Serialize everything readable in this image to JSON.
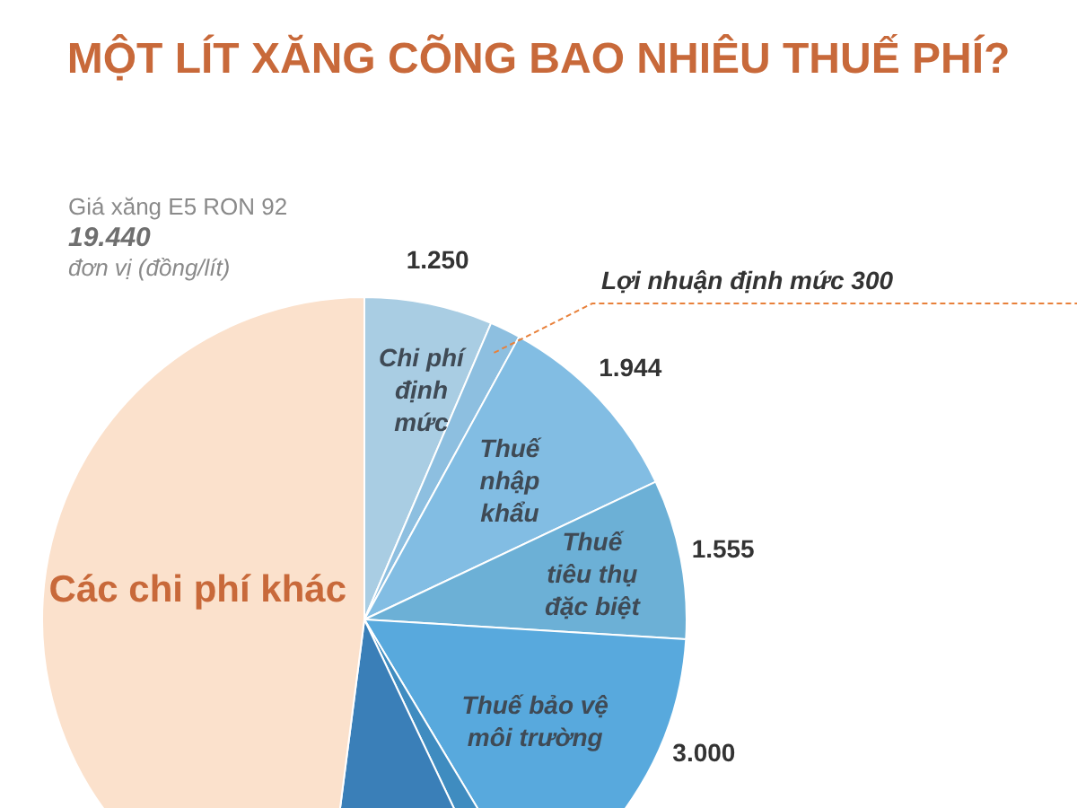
{
  "chart_data": {
    "type": "pie",
    "title": "MỘT LÍT XĂNG CÕNG BAO NHIÊU THUẾ PHÍ?",
    "annotations": [
      "Giá xăng E5 RON 92",
      "19.440",
      "đơn vị (đồng/lít)"
    ],
    "categories": [
      "Chi phí định mức",
      "Lợi nhuận định mức",
      "Thuế nhập khẩu",
      "Thuế tiêu thụ đặc biệt",
      "Thuế bảo vệ môi trường",
      null,
      null,
      "Các chi phí khác"
    ],
    "values": [
      1250,
      300,
      1944,
      1555,
      3000,
      300,
      1767,
      9324
    ],
    "value_labels": [
      "1.250",
      "300",
      "1.944",
      "1.555",
      "3.000",
      null,
      null,
      null
    ],
    "colors": [
      "#a9cde3",
      "#8dbfe0",
      "#82bde3",
      "#6cb0d6",
      "#58a9dd",
      "#3f8cc0",
      "#3a7fb8",
      "#fbe1cc"
    ]
  }
}
